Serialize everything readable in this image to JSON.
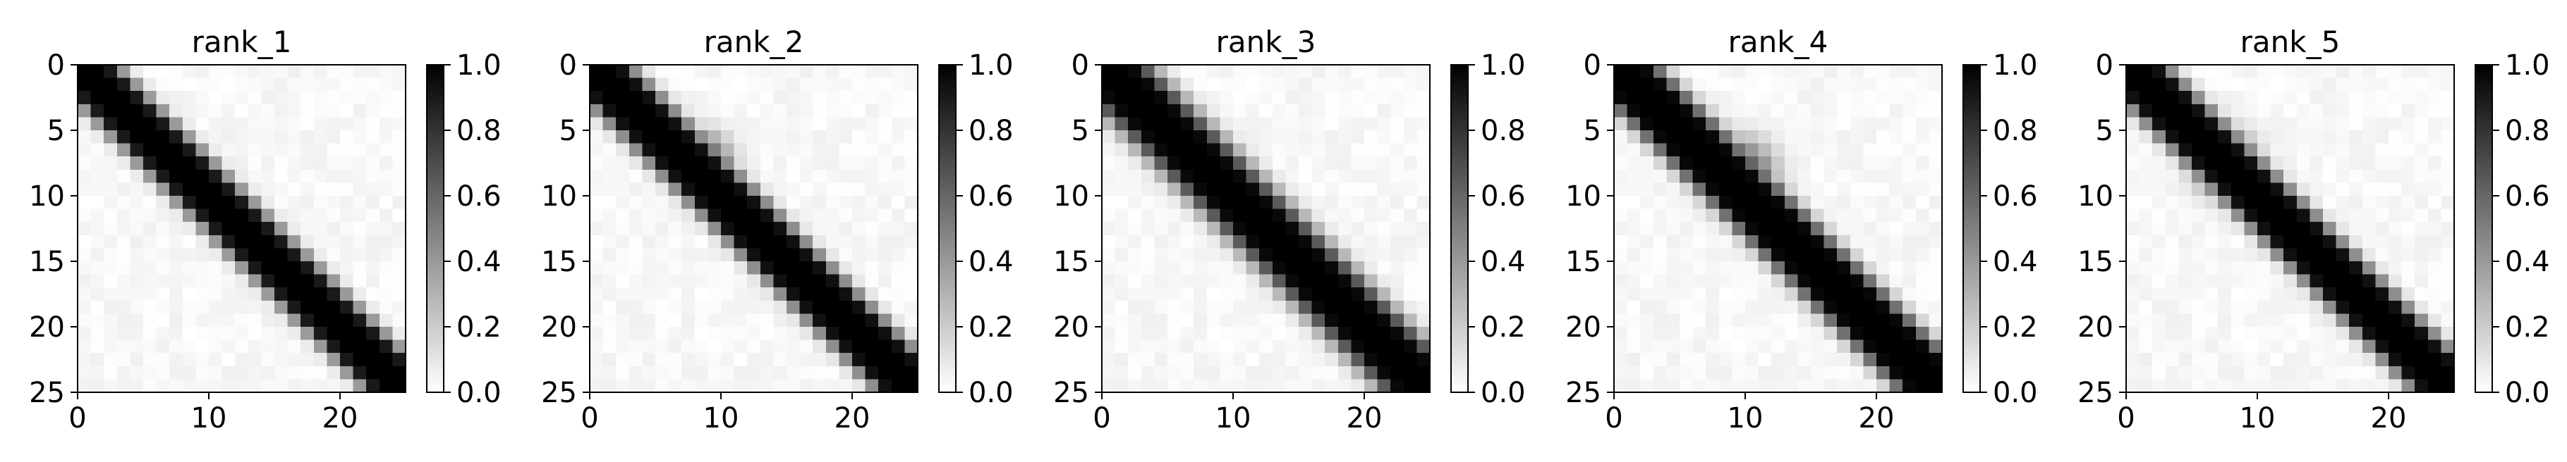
{
  "chart_data": [
    {
      "type": "heatmap",
      "title": "rank_1",
      "grid_size": 25,
      "x_ticks": [
        "0",
        "10",
        "20"
      ],
      "y_ticks": [
        "0",
        "5",
        "10",
        "15",
        "20",
        "25"
      ],
      "colorbar": {
        "range": [
          0.0,
          1.0
        ],
        "ticks": [
          "0.0",
          "0.2",
          "0.4",
          "0.6",
          "0.8",
          "1.0"
        ],
        "colormap": "gray_r"
      },
      "diagonal": {
        "offset": 0.0,
        "half_width": 1.5,
        "spread": 2.2
      },
      "blobs": []
    },
    {
      "type": "heatmap",
      "title": "rank_2",
      "grid_size": 25,
      "x_ticks": [
        "0",
        "10",
        "20"
      ],
      "y_ticks": [
        "0",
        "5",
        "10",
        "15",
        "20",
        "25"
      ],
      "colorbar": {
        "range": [
          0.0,
          1.0
        ],
        "ticks": [
          "0.0",
          "0.2",
          "0.4",
          "0.6",
          "0.8",
          "1.0"
        ],
        "colormap": "gray_r"
      },
      "diagonal": {
        "offset": 0.0,
        "half_width": 1.6,
        "spread": 2.2
      },
      "blobs": [
        {
          "x": 8,
          "y": 7,
          "strength": 0.75,
          "sigma": 1.6
        }
      ]
    },
    {
      "type": "heatmap",
      "title": "rank_3",
      "grid_size": 25,
      "x_ticks": [
        "0",
        "10",
        "20"
      ],
      "y_ticks": [
        "0",
        "5",
        "10",
        "15",
        "20",
        "25"
      ],
      "colorbar": {
        "range": [
          0.0,
          1.0
        ],
        "ticks": [
          "0.0",
          "0.2",
          "0.4",
          "0.6",
          "0.8",
          "1.0"
        ],
        "colormap": "gray_r"
      },
      "diagonal": {
        "offset": 0.0,
        "half_width": 1.6,
        "spread": 3.0
      },
      "blobs": []
    },
    {
      "type": "heatmap",
      "title": "rank_4",
      "grid_size": 25,
      "x_ticks": [
        "0",
        "10",
        "20"
      ],
      "y_ticks": [
        "0",
        "5",
        "10",
        "15",
        "20",
        "25"
      ],
      "colorbar": {
        "range": [
          0.0,
          1.0
        ],
        "ticks": [
          "0.0",
          "0.2",
          "0.4",
          "0.6",
          "0.8",
          "1.0"
        ],
        "colormap": "gray_r"
      },
      "diagonal": {
        "offset": 0.0,
        "half_width": 1.7,
        "spread": 2.4
      },
      "blobs": [
        {
          "x": 9,
          "y": 8,
          "strength": 0.8,
          "sigma": 1.9
        }
      ]
    },
    {
      "type": "heatmap",
      "title": "rank_5",
      "grid_size": 25,
      "x_ticks": [
        "0",
        "10",
        "20"
      ],
      "y_ticks": [
        "0",
        "5",
        "10",
        "15",
        "20",
        "25"
      ],
      "colorbar": {
        "range": [
          0.0,
          1.0
        ],
        "ticks": [
          "0.0",
          "0.2",
          "0.4",
          "0.6",
          "0.8",
          "1.0"
        ],
        "colormap": "gray_r"
      },
      "diagonal": {
        "offset": 0.0,
        "half_width": 1.6,
        "spread": 2.2
      },
      "blobs": [
        {
          "x": 7,
          "y": 7,
          "strength": 0.75,
          "sigma": 1.7
        }
      ]
    }
  ]
}
